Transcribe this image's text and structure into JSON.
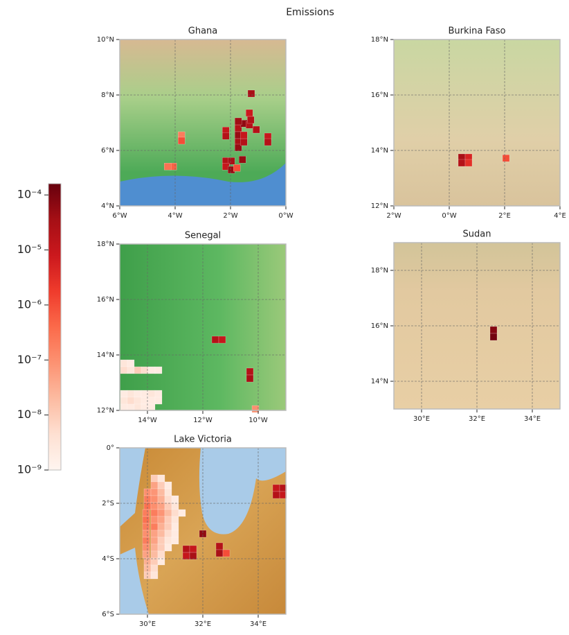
{
  "title": "Emissions",
  "colorbar": {
    "clim": [
      1e-09,
      0.00016
    ],
    "log": true,
    "colormap": [
      "#fff5f0",
      "#fee0d2",
      "#fcbba1",
      "#fc9272",
      "#fb6a4a",
      "#ef3b2c",
      "#cb181d",
      "#a50f15",
      "#67000d"
    ],
    "ticks": [
      {
        "value": 1e-09,
        "label": "10⁻⁹"
      },
      {
        "value": 1e-08,
        "label": "10⁻⁸"
      },
      {
        "value": 1e-07,
        "label": "10⁻⁷"
      },
      {
        "value": 1e-06,
        "label": "10⁻⁶"
      },
      {
        "value": 1e-05,
        "label": "10⁻⁵"
      },
      {
        "value": 0.0001,
        "label": "10⁻⁴"
      }
    ]
  },
  "cell_size": 0.25,
  "panels": [
    {
      "title": "Ghana",
      "xlim": [
        -6,
        0
      ],
      "ylim": [
        4,
        10
      ],
      "xticks": [
        {
          "value": -6,
          "label": "6°W"
        },
        {
          "value": -4,
          "label": "4°W"
        },
        {
          "value": -2,
          "label": "2°W"
        },
        {
          "value": 0,
          "label": "0°W"
        }
      ],
      "yticks": [
        {
          "value": 4,
          "label": "4°N"
        },
        {
          "value": 6,
          "label": "6°N"
        },
        {
          "value": 8,
          "label": "8°N"
        },
        {
          "value": 10,
          "label": "10°N"
        }
      ],
      "cells": [
        [
          -1.25,
          8.05,
          3e-05
        ],
        [
          -4.07,
          5.42,
          5e-07
        ],
        [
          -4.27,
          5.42,
          3e-07
        ],
        [
          -3.77,
          6.55,
          2e-07
        ],
        [
          -3.77,
          6.35,
          1e-06
        ],
        [
          -2.17,
          6.72,
          1e-05
        ],
        [
          -2.17,
          6.52,
          2e-05
        ],
        [
          -2.17,
          5.62,
          2e-05
        ],
        [
          -1.97,
          5.62,
          3e-05
        ],
        [
          -2.17,
          5.42,
          1e-05
        ],
        [
          -1.97,
          5.3,
          5e-05
        ],
        [
          -1.77,
          5.37,
          1e-06
        ],
        [
          -1.72,
          6.8,
          2e-05
        ],
        [
          -1.72,
          6.55,
          5e-05
        ],
        [
          -1.72,
          6.3,
          3e-05
        ],
        [
          -1.72,
          6.1,
          5e-05
        ],
        [
          -1.52,
          6.3,
          2e-05
        ],
        [
          -1.52,
          6.97,
          6e-05
        ],
        [
          -1.52,
          6.55,
          1e-05
        ],
        [
          -1.32,
          6.92,
          2e-05
        ],
        [
          -1.32,
          7.35,
          8e-06
        ],
        [
          -1.27,
          7.1,
          2e-05
        ],
        [
          -1.07,
          6.75,
          2e-05
        ],
        [
          -1.57,
          5.67,
          5e-05
        ],
        [
          -0.65,
          6.5,
          1e-05
        ],
        [
          -0.65,
          6.3,
          2e-05
        ],
        [
          -1.72,
          7.05,
          4e-05
        ]
      ]
    },
    {
      "title": "Burkina Faso",
      "xlim": [
        -2,
        4
      ],
      "ylim": [
        12,
        18
      ],
      "xticks": [
        {
          "value": -2,
          "label": "2°W"
        },
        {
          "value": 0,
          "label": "0°W"
        },
        {
          "value": 2,
          "label": "2°E"
        },
        {
          "value": 4,
          "label": "4°E"
        }
      ],
      "yticks": [
        {
          "value": 12,
          "label": "12°N"
        },
        {
          "value": 14,
          "label": "14°N"
        },
        {
          "value": 16,
          "label": "16°N"
        },
        {
          "value": 18,
          "label": "18°N"
        }
      ],
      "cells": [
        [
          0.45,
          13.75,
          3e-05
        ],
        [
          0.7,
          13.75,
          5e-06
        ],
        [
          0.45,
          13.55,
          2e-05
        ],
        [
          0.7,
          13.55,
          3e-06
        ],
        [
          2.05,
          13.72,
          1e-06
        ]
      ]
    },
    {
      "title": "Senegal",
      "xlim": [
        -15,
        -9
      ],
      "ylim": [
        12,
        18
      ],
      "xticks": [
        {
          "value": -14,
          "label": "14°W"
        },
        {
          "value": -12,
          "label": "12°W"
        },
        {
          "value": -10,
          "label": "10°W"
        }
      ],
      "yticks": [
        {
          "value": 12,
          "label": "12°N"
        },
        {
          "value": 14,
          "label": "14°N"
        },
        {
          "value": 16,
          "label": "16°N"
        },
        {
          "value": 18,
          "label": "18°N"
        }
      ],
      "cells": [
        [
          -14.85,
          13.7,
          3e-09
        ],
        [
          -14.6,
          13.7,
          2e-09
        ],
        [
          -14.85,
          13.45,
          5e-09
        ],
        [
          -14.6,
          13.45,
          3e-09
        ],
        [
          -14.35,
          13.45,
          1e-08
        ],
        [
          -14.1,
          13.45,
          5e-09
        ],
        [
          -13.85,
          13.45,
          2e-09
        ],
        [
          -13.6,
          13.45,
          2e-09
        ],
        [
          -14.85,
          12.6,
          2e-09
        ],
        [
          -14.6,
          12.6,
          3e-09
        ],
        [
          -14.35,
          12.6,
          2e-09
        ],
        [
          -14.1,
          12.6,
          2e-09
        ],
        [
          -13.85,
          12.6,
          3e-09
        ],
        [
          -13.6,
          12.6,
          2e-09
        ],
        [
          -14.85,
          12.35,
          3e-09
        ],
        [
          -14.6,
          12.35,
          5e-09
        ],
        [
          -14.35,
          12.35,
          3e-09
        ],
        [
          -14.1,
          12.35,
          2e-09
        ],
        [
          -13.85,
          12.35,
          2e-09
        ],
        [
          -13.6,
          12.35,
          2e-09
        ],
        [
          -14.85,
          12.1,
          2e-09
        ],
        [
          -14.6,
          12.1,
          2e-09
        ],
        [
          -14.35,
          12.1,
          3e-09
        ],
        [
          -14.1,
          12.1,
          2e-09
        ],
        [
          -13.85,
          12.1,
          2e-09
        ],
        [
          -11.55,
          14.55,
          2e-05
        ],
        [
          -11.3,
          14.55,
          1e-05
        ],
        [
          -10.3,
          13.4,
          2e-05
        ],
        [
          -10.3,
          13.15,
          3e-05
        ],
        [
          -10.1,
          12.05,
          1e-07
        ]
      ]
    },
    {
      "title": "Sudan",
      "xlim": [
        29,
        35
      ],
      "ylim": [
        13,
        19
      ],
      "xticks": [
        {
          "value": 30,
          "label": "30°E"
        },
        {
          "value": 32,
          "label": "32°E"
        },
        {
          "value": 34,
          "label": "34°E"
        }
      ],
      "yticks": [
        {
          "value": 14,
          "label": "14°N"
        },
        {
          "value": 16,
          "label": "16°N"
        },
        {
          "value": 18,
          "label": "18°N"
        }
      ],
      "cells": [
        [
          32.6,
          15.85,
          8e-05
        ],
        [
          32.6,
          15.6,
          0.00012
        ]
      ]
    },
    {
      "title": "Lake Victoria",
      "xlim": [
        29,
        35
      ],
      "ylim": [
        -6,
        0
      ],
      "xticks": [
        {
          "value": 30,
          "label": "30°E"
        },
        {
          "value": 32,
          "label": "32°E"
        },
        {
          "value": 34,
          "label": "34°E"
        }
      ],
      "yticks": [
        {
          "value": 0,
          "label": "0°"
        },
        {
          "value": -2,
          "label": "2°S"
        },
        {
          "value": -4,
          "label": "4°S"
        },
        {
          "value": -6,
          "label": "6°S"
        }
      ],
      "cells": [
        [
          30.25,
          -1.1,
          1e-08
        ],
        [
          30.5,
          -1.1,
          3e-09
        ],
        [
          30.25,
          -1.35,
          5e-08
        ],
        [
          30.5,
          -1.35,
          1e-08
        ],
        [
          30.75,
          -1.35,
          2e-09
        ],
        [
          30.0,
          -1.6,
          1e-07
        ],
        [
          30.25,
          -1.6,
          8e-08
        ],
        [
          30.5,
          -1.6,
          2e-08
        ],
        [
          30.75,
          -1.6,
          3e-09
        ],
        [
          30.0,
          -1.85,
          2e-07
        ],
        [
          30.25,
          -1.85,
          1e-07
        ],
        [
          30.5,
          -1.85,
          3e-08
        ],
        [
          30.75,
          -1.85,
          5e-09
        ],
        [
          31.0,
          -1.85,
          2e-09
        ],
        [
          30.0,
          -2.1,
          3e-07
        ],
        [
          30.25,
          -2.1,
          1e-07
        ],
        [
          30.5,
          -2.1,
          5e-08
        ],
        [
          30.75,
          -2.1,
          1e-08
        ],
        [
          31.0,
          -2.1,
          3e-09
        ],
        [
          29.95,
          -2.35,
          2e-07
        ],
        [
          30.25,
          -2.35,
          2e-07
        ],
        [
          30.5,
          -2.35,
          8e-08
        ],
        [
          30.75,
          -2.35,
          2e-08
        ],
        [
          31.0,
          -2.35,
          5e-09
        ],
        [
          31.25,
          -2.35,
          2e-09
        ],
        [
          29.95,
          -2.6,
          3e-07
        ],
        [
          30.25,
          -2.6,
          1e-07
        ],
        [
          30.5,
          -2.6,
          5e-08
        ],
        [
          30.75,
          -2.6,
          1e-08
        ],
        [
          31.0,
          -2.6,
          3e-09
        ],
        [
          29.95,
          -2.85,
          2e-07
        ],
        [
          30.25,
          -2.85,
          2e-07
        ],
        [
          30.5,
          -2.85,
          3e-08
        ],
        [
          30.75,
          -2.85,
          1e-08
        ],
        [
          31.0,
          -2.85,
          2e-09
        ],
        [
          29.95,
          -3.1,
          1e-07
        ],
        [
          30.25,
          -3.1,
          5e-08
        ],
        [
          30.5,
          -3.1,
          2e-08
        ],
        [
          30.75,
          -3.1,
          5e-09
        ],
        [
          31.0,
          -3.1,
          2e-09
        ],
        [
          29.95,
          -3.35,
          2e-07
        ],
        [
          30.25,
          -3.35,
          5e-08
        ],
        [
          30.5,
          -3.35,
          1e-08
        ],
        [
          30.75,
          -3.35,
          3e-09
        ],
        [
          31.0,
          -3.35,
          2e-09
        ],
        [
          29.95,
          -3.6,
          1e-07
        ],
        [
          30.25,
          -3.6,
          3e-08
        ],
        [
          30.5,
          -3.6,
          1e-08
        ],
        [
          30.75,
          -3.6,
          2e-09
        ],
        [
          29.95,
          -3.85,
          5e-08
        ],
        [
          30.25,
          -3.85,
          2e-08
        ],
        [
          30.5,
          -3.85,
          5e-09
        ],
        [
          30.0,
          -4.1,
          3e-08
        ],
        [
          30.25,
          -4.1,
          1e-08
        ],
        [
          30.5,
          -4.1,
          2e-09
        ],
        [
          30.0,
          -4.35,
          2e-08
        ],
        [
          30.25,
          -4.35,
          5e-09
        ],
        [
          30.0,
          -4.6,
          1e-08
        ],
        [
          30.25,
          -4.6,
          3e-09
        ],
        [
          31.4,
          -3.65,
          2e-05
        ],
        [
          31.65,
          -3.65,
          1e-05
        ],
        [
          31.4,
          -3.9,
          1e-05
        ],
        [
          31.65,
          -3.9,
          3e-05
        ],
        [
          32.0,
          -3.1,
          6e-05
        ],
        [
          32.6,
          -3.55,
          2e-05
        ],
        [
          32.6,
          -3.8,
          3e-05
        ],
        [
          32.85,
          -3.8,
          1e-06
        ],
        [
          34.65,
          -1.45,
          1e-05
        ],
        [
          34.9,
          -1.45,
          2e-05
        ],
        [
          34.65,
          -1.7,
          2e-05
        ],
        [
          34.9,
          -1.7,
          1e-05
        ]
      ]
    }
  ]
}
